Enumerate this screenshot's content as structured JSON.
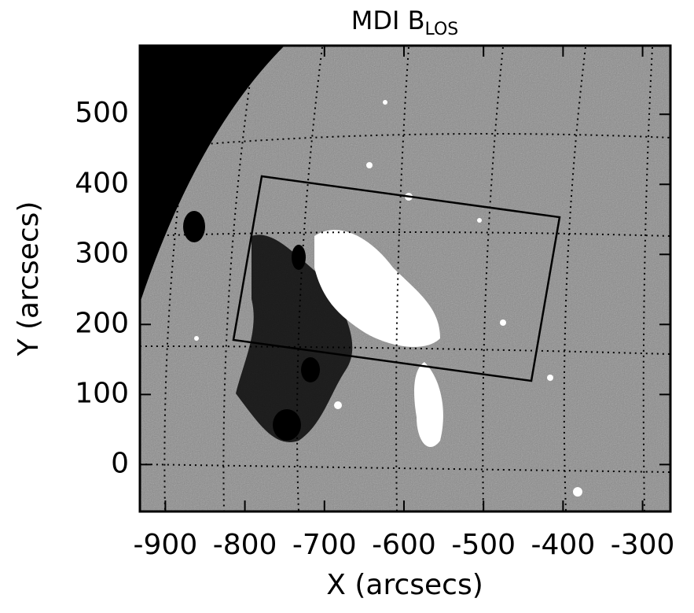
{
  "chart_data": {
    "type": "image",
    "title": "MDI B",
    "title_subscript": "LOS",
    "x_label": "X (arcsecs)",
    "y_label": "Y (arcsecs)",
    "xlim": [
      -932,
      -265
    ],
    "ylim": [
      -67,
      598
    ],
    "xticks": [
      -900,
      -800,
      -700,
      -600,
      -500,
      -400,
      -300
    ],
    "yticks": [
      0,
      100,
      200,
      300,
      400,
      500
    ]
  }
}
